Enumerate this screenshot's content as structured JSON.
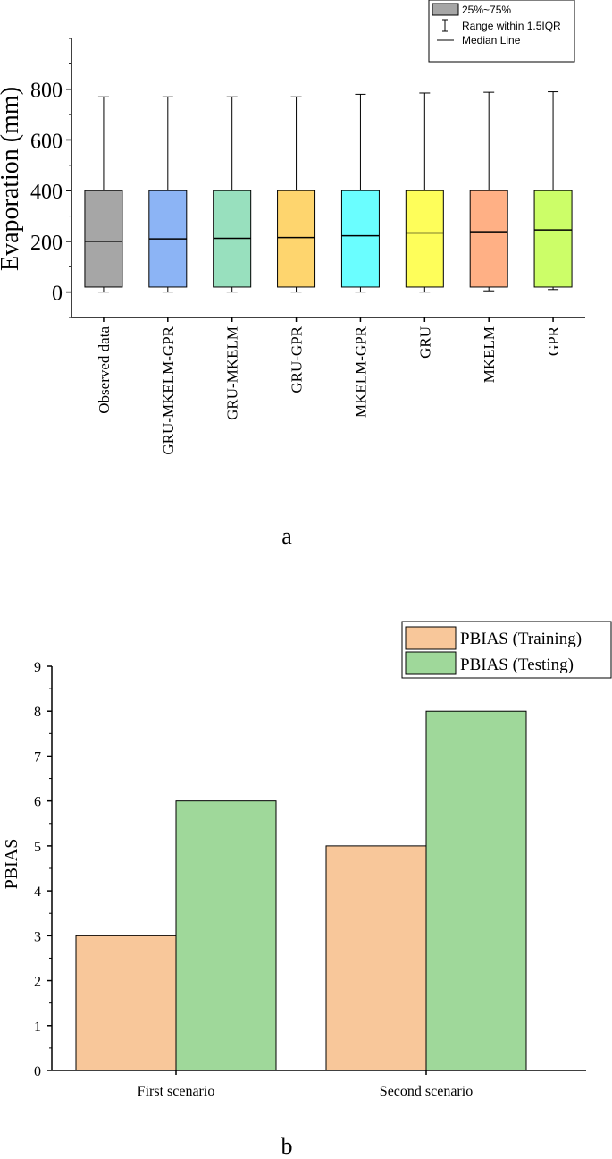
{
  "panel_labels": {
    "a": "a",
    "b": "b"
  },
  "chart_data": [
    {
      "type": "box",
      "ylabel": "Evaporation (mm)",
      "ylim": [
        -100,
        1000
      ],
      "y_ticks": [
        "0",
        "200",
        "400",
        "600",
        "800"
      ],
      "y_tick_values": [
        0,
        200,
        400,
        600,
        800
      ],
      "legend": {
        "placement": "top-right",
        "entries": [
          "25%~75%",
          "Range within 1.5IQR",
          "Median Line"
        ]
      },
      "categories": [
        "Observed data",
        "GRU-MKELM-GPR",
        "GRU-MKELM",
        "GRU-GPR",
        "MKELM-GPR",
        "GRU",
        "MKELM",
        "GPR"
      ],
      "colors": [
        "#a6a6a6",
        "#8cb4f5",
        "#98e0be",
        "#fed56e",
        "#6afeff",
        "#fefe5a",
        "#ffb085",
        "#ccfe68"
      ],
      "boxes": [
        {
          "min": 0,
          "q1": 20,
          "median": 200,
          "q3": 400,
          "max": 770
        },
        {
          "min": 0,
          "q1": 20,
          "median": 210,
          "q3": 400,
          "max": 770
        },
        {
          "min": 0,
          "q1": 20,
          "median": 212,
          "q3": 400,
          "max": 770
        },
        {
          "min": 0,
          "q1": 20,
          "median": 215,
          "q3": 400,
          "max": 770
        },
        {
          "min": 0,
          "q1": 20,
          "median": 222,
          "q3": 400,
          "max": 780
        },
        {
          "min": 0,
          "q1": 20,
          "median": 233,
          "q3": 400,
          "max": 785
        },
        {
          "min": 5,
          "q1": 20,
          "median": 238,
          "q3": 400,
          "max": 788
        },
        {
          "min": 10,
          "q1": 20,
          "median": 245,
          "q3": 400,
          "max": 790
        }
      ]
    },
    {
      "type": "bar",
      "ylabel": "PBIAS",
      "ylim": [
        0,
        9
      ],
      "y_ticks": [
        "0",
        "1",
        "2",
        "3",
        "4",
        "5",
        "6",
        "7",
        "8",
        "9"
      ],
      "categories": [
        "First scenario",
        "Second scenario"
      ],
      "series": [
        {
          "name": "PBIAS (Training)",
          "values": [
            3,
            5
          ],
          "color": "#f8c79a"
        },
        {
          "name": "PBIAS (Testing)",
          "values": [
            6,
            8
          ],
          "color": "#9fd89a"
        }
      ],
      "legend": {
        "placement": "top-right"
      }
    }
  ]
}
